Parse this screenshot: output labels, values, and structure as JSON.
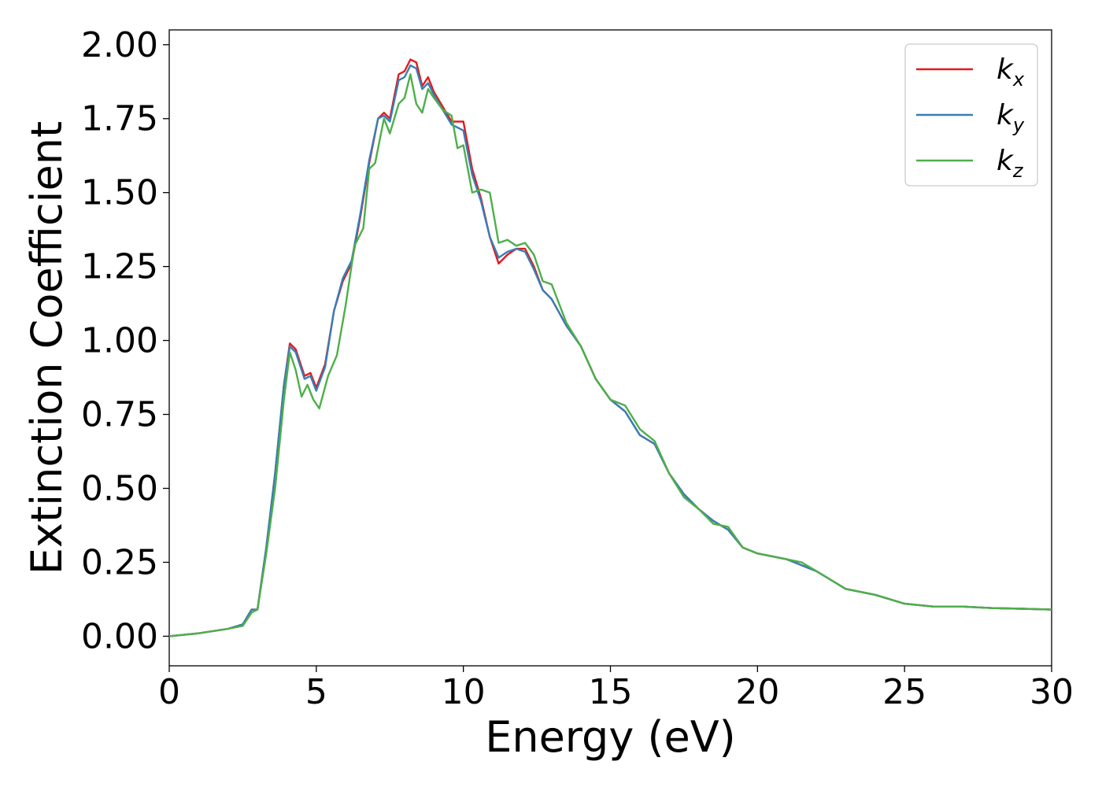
{
  "chart_data": {
    "type": "line",
    "xlabel": "Energy (eV)",
    "ylabel": "Extinction Coefficient",
    "xlim": [
      0,
      30
    ],
    "ylim": [
      -0.1,
      2.05
    ],
    "xticks": [
      0,
      5,
      10,
      15,
      20,
      25,
      30
    ],
    "xtick_labels": [
      "0",
      "5",
      "10",
      "15",
      "20",
      "25",
      "30"
    ],
    "yticks": [
      0,
      0.25,
      0.5,
      0.75,
      1.0,
      1.25,
      1.5,
      1.75,
      2.0
    ],
    "ytick_labels": [
      "0.00",
      "0.25",
      "0.50",
      "0.75",
      "1.00",
      "1.25",
      "1.50",
      "1.75",
      "2.00"
    ],
    "grid": false,
    "legend_position": "top-right",
    "series": [
      {
        "name": "k",
        "subscript": "x",
        "color": "#e41a1c",
        "x": [
          0,
          1,
          2,
          2.5,
          2.8,
          3.0,
          3.3,
          3.6,
          3.9,
          4.1,
          4.3,
          4.6,
          4.8,
          5.0,
          5.3,
          5.6,
          5.9,
          6.2,
          6.5,
          6.8,
          7.1,
          7.3,
          7.5,
          7.8,
          8.0,
          8.2,
          8.4,
          8.6,
          8.8,
          9.0,
          9.3,
          9.6,
          9.8,
          10.0,
          10.3,
          10.6,
          10.9,
          11.2,
          11.5,
          11.8,
          12.1,
          12.4,
          12.7,
          13.0,
          13.5,
          14.0,
          14.5,
          15.0,
          15.5,
          16.0,
          16.5,
          17.0,
          17.5,
          18.0,
          18.5,
          19.0,
          19.5,
          20.0,
          20.5,
          21.0,
          21.5,
          22.0,
          22.5,
          23.0,
          24.0,
          25.0,
          26.0,
          27.0,
          28.0,
          29.0,
          30.0
        ],
        "y": [
          0,
          0.01,
          0.025,
          0.04,
          0.09,
          0.09,
          0.3,
          0.55,
          0.85,
          0.99,
          0.97,
          0.88,
          0.89,
          0.84,
          0.92,
          1.1,
          1.2,
          1.26,
          1.42,
          1.6,
          1.75,
          1.77,
          1.75,
          1.9,
          1.91,
          1.95,
          1.94,
          1.86,
          1.89,
          1.84,
          1.79,
          1.74,
          1.74,
          1.74,
          1.58,
          1.48,
          1.35,
          1.26,
          1.29,
          1.31,
          1.31,
          1.25,
          1.17,
          1.14,
          1.05,
          0.98,
          0.87,
          0.8,
          0.76,
          0.68,
          0.65,
          0.55,
          0.48,
          0.43,
          0.39,
          0.36,
          0.3,
          0.28,
          0.27,
          0.26,
          0.24,
          0.22,
          0.19,
          0.16,
          0.14,
          0.11,
          0.1,
          0.1,
          0.095,
          0.093,
          0.09
        ]
      },
      {
        "name": "k",
        "subscript": "y",
        "color": "#377eb8",
        "x": [
          0,
          1,
          2,
          2.5,
          2.8,
          3.0,
          3.3,
          3.6,
          3.9,
          4.1,
          4.3,
          4.6,
          4.8,
          5.0,
          5.3,
          5.6,
          5.9,
          6.2,
          6.5,
          6.8,
          7.1,
          7.3,
          7.5,
          7.8,
          8.0,
          8.2,
          8.4,
          8.6,
          8.8,
          9.0,
          9.3,
          9.6,
          9.8,
          10.0,
          10.3,
          10.6,
          10.9,
          11.2,
          11.5,
          11.8,
          12.1,
          12.4,
          12.7,
          13.0,
          13.5,
          14.0,
          14.5,
          15.0,
          15.5,
          16.0,
          16.5,
          17.0,
          17.5,
          18.0,
          18.5,
          19.0,
          19.5,
          20.0,
          20.5,
          21.0,
          21.5,
          22.0,
          22.5,
          23.0,
          24.0,
          25.0,
          26.0,
          27.0,
          28.0,
          29.0,
          30.0
        ],
        "y": [
          0,
          0.01,
          0.025,
          0.04,
          0.09,
          0.09,
          0.3,
          0.55,
          0.85,
          0.98,
          0.96,
          0.87,
          0.88,
          0.83,
          0.91,
          1.1,
          1.21,
          1.27,
          1.43,
          1.61,
          1.75,
          1.76,
          1.74,
          1.88,
          1.89,
          1.93,
          1.92,
          1.85,
          1.87,
          1.83,
          1.78,
          1.73,
          1.72,
          1.71,
          1.56,
          1.47,
          1.35,
          1.28,
          1.3,
          1.31,
          1.3,
          1.24,
          1.17,
          1.14,
          1.05,
          0.98,
          0.87,
          0.8,
          0.76,
          0.68,
          0.65,
          0.55,
          0.48,
          0.43,
          0.39,
          0.36,
          0.3,
          0.28,
          0.27,
          0.26,
          0.24,
          0.22,
          0.19,
          0.16,
          0.14,
          0.11,
          0.1,
          0.1,
          0.095,
          0.093,
          0.09
        ]
      },
      {
        "name": "k",
        "subscript": "z",
        "color": "#4daf4a",
        "x": [
          0,
          1,
          2,
          2.5,
          2.8,
          3.0,
          3.3,
          3.6,
          3.9,
          4.1,
          4.3,
          4.5,
          4.7,
          4.9,
          5.1,
          5.4,
          5.7,
          6.0,
          6.3,
          6.6,
          6.8,
          7.0,
          7.3,
          7.5,
          7.8,
          8.0,
          8.2,
          8.4,
          8.6,
          8.8,
          9.0,
          9.3,
          9.6,
          9.8,
          10.0,
          10.3,
          10.6,
          10.9,
          11.2,
          11.5,
          11.8,
          12.1,
          12.4,
          12.7,
          13.0,
          13.5,
          14.0,
          14.5,
          15.0,
          15.5,
          16.0,
          16.5,
          17.0,
          17.5,
          18.0,
          18.5,
          19.0,
          19.5,
          20.0,
          20.5,
          21.0,
          21.5,
          22.0,
          22.5,
          23.0,
          24.0,
          25.0,
          26.0,
          27.0,
          28.0,
          29.0,
          30.0
        ],
        "y": [
          0,
          0.01,
          0.025,
          0.035,
          0.08,
          0.09,
          0.28,
          0.5,
          0.8,
          0.96,
          0.9,
          0.81,
          0.85,
          0.8,
          0.77,
          0.88,
          0.95,
          1.12,
          1.32,
          1.38,
          1.58,
          1.6,
          1.75,
          1.7,
          1.8,
          1.82,
          1.9,
          1.8,
          1.77,
          1.85,
          1.82,
          1.78,
          1.76,
          1.65,
          1.66,
          1.5,
          1.51,
          1.5,
          1.33,
          1.34,
          1.32,
          1.33,
          1.29,
          1.2,
          1.19,
          1.06,
          0.98,
          0.87,
          0.8,
          0.78,
          0.7,
          0.66,
          0.55,
          0.47,
          0.43,
          0.38,
          0.37,
          0.3,
          0.28,
          0.27,
          0.26,
          0.25,
          0.22,
          0.19,
          0.16,
          0.14,
          0.11,
          0.1,
          0.1,
          0.095,
          0.093,
          0.09
        ]
      }
    ]
  }
}
